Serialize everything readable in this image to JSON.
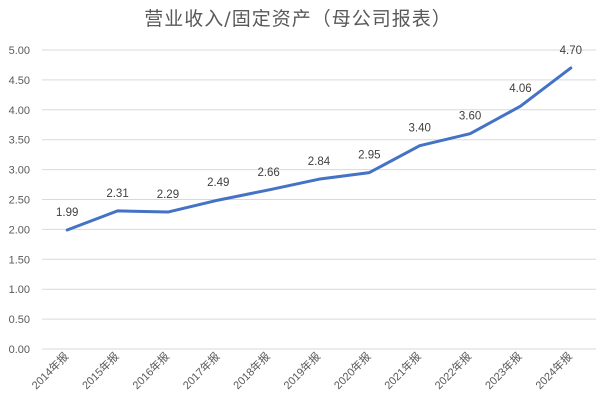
{
  "chart_data": {
    "type": "line",
    "title": "营业收入/固定资产（母公司报表）",
    "categories": [
      "2014年报",
      "2015年报",
      "2016年报",
      "2017年报",
      "2018年报",
      "2019年报",
      "2020年报",
      "2021年报",
      "2022年报",
      "2023年报",
      "2024年报"
    ],
    "series": [
      {
        "values": [
          1.99,
          2.31,
          2.29,
          2.49,
          2.66,
          2.84,
          2.95,
          3.4,
          3.6,
          4.06,
          4.7
        ],
        "labels": [
          "1.99",
          "2.31",
          "2.29",
          "2.49",
          "2.66",
          "2.84",
          "2.95",
          "3.40",
          "3.60",
          "4.06",
          "4.70"
        ]
      }
    ],
    "yticks": [
      "0.00",
      "0.50",
      "1.00",
      "1.50",
      "2.00",
      "2.50",
      "3.00",
      "3.50",
      "4.00",
      "4.50",
      "5.00"
    ],
    "ylim": [
      0,
      5
    ],
    "grid": true,
    "line_color": "#4472c4"
  }
}
